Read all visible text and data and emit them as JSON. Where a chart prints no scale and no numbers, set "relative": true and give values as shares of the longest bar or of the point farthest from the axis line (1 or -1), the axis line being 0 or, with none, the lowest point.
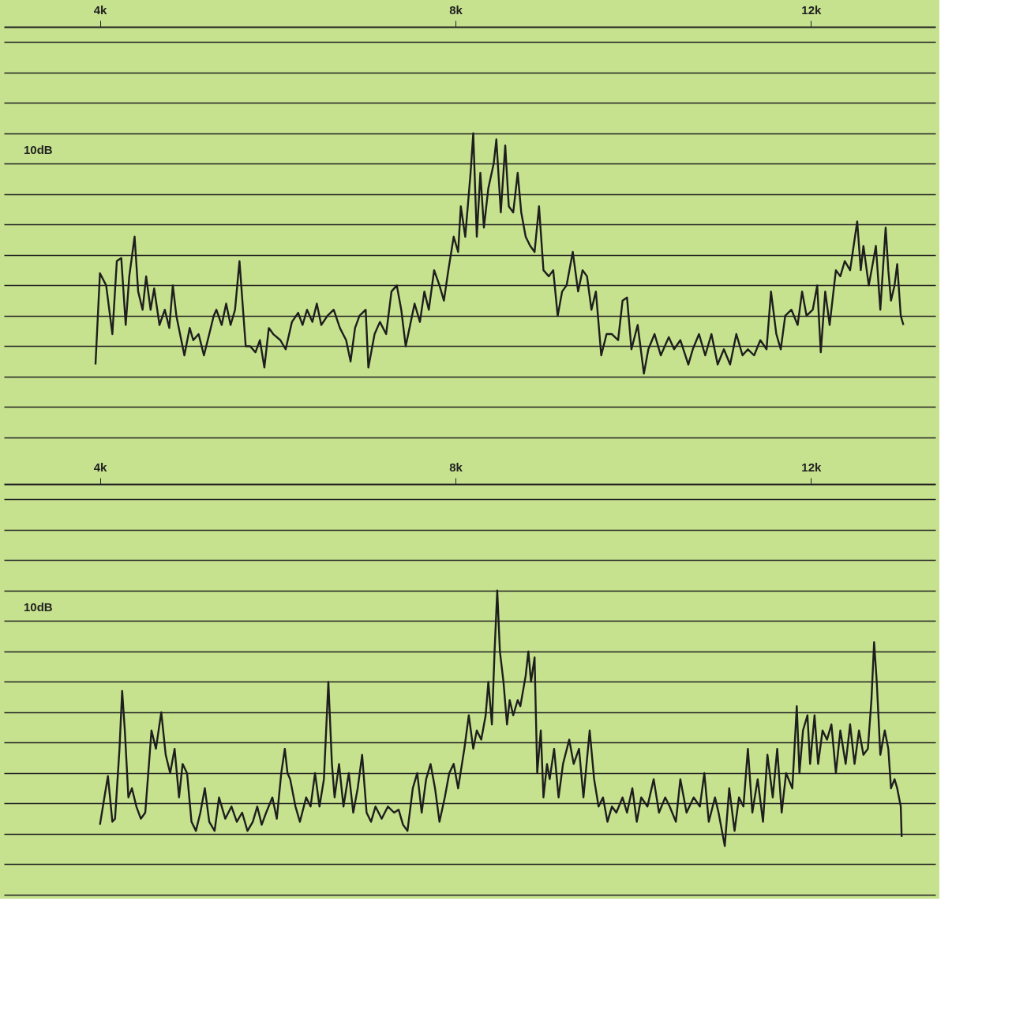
{
  "chart_data": [
    {
      "type": "line",
      "relative": true,
      "grid": "y",
      "tick_labels": "x",
      "marker": "none",
      "line_style": "solid",
      "annotations": [
        "10dB"
      ],
      "xlim": [
        2.92,
        13.4
      ],
      "xticks": [
        {
          "value": 4,
          "label": "4k"
        },
        {
          "value": 8,
          "label": "8k"
        },
        {
          "value": 12,
          "label": "12k"
        }
      ],
      "series": [
        {
          "color": "#1e1e1e",
          "x": [
            3.95,
            4.0,
            4.07,
            4.14,
            4.19,
            4.24,
            4.29,
            4.33,
            4.39,
            4.43,
            4.48,
            4.52,
            4.57,
            4.61,
            4.67,
            4.73,
            4.78,
            4.82,
            4.86,
            4.95,
            5.01,
            5.05,
            5.11,
            5.17,
            5.23,
            5.28,
            5.31,
            5.37,
            5.42,
            5.47,
            5.52,
            5.57,
            5.61,
            5.64,
            5.69,
            5.75,
            5.8,
            5.85,
            5.9,
            5.95,
            6.03,
            6.09,
            6.16,
            6.23,
            6.28,
            6.33,
            6.39,
            6.44,
            6.49,
            6.56,
            6.63,
            6.7,
            6.77,
            6.82,
            6.87,
            6.92,
            6.99,
            7.02,
            7.09,
            7.15,
            7.22,
            7.28,
            7.34,
            7.39,
            7.44,
            7.49,
            7.54,
            7.6,
            7.65,
            7.7,
            7.76,
            7.82,
            7.87,
            7.92,
            7.98,
            8.03,
            8.06,
            8.11,
            8.17,
            8.2,
            8.24,
            8.28,
            8.32,
            8.37,
            8.43,
            8.46,
            8.51,
            8.56,
            8.6,
            8.65,
            8.7,
            8.74,
            8.79,
            8.84,
            8.89,
            8.94,
            8.99,
            9.05,
            9.1,
            9.15,
            9.2,
            9.25,
            9.32,
            9.38,
            9.43,
            9.48,
            9.53,
            9.58,
            9.64,
            9.7,
            9.76,
            9.83,
            9.88,
            9.93,
            9.98,
            10.05,
            10.12,
            10.17,
            10.24,
            10.31,
            10.4,
            10.46,
            10.53,
            10.62,
            10.67,
            10.74,
            10.81,
            10.88,
            10.95,
            11.02,
            11.09,
            11.16,
            11.23,
            11.29,
            11.36,
            11.43,
            11.5,
            11.55,
            11.61,
            11.66,
            11.71,
            11.78,
            11.85,
            11.9,
            11.95,
            12.02,
            12.07,
            12.11,
            12.16,
            12.21,
            12.28,
            12.33,
            12.38,
            12.44,
            12.47,
            12.52,
            12.56,
            12.59,
            12.65,
            12.7,
            12.73,
            12.78,
            12.84,
            12.87,
            12.9,
            12.94,
            12.97,
            13.01,
            13.04
          ],
          "values": [
            0.24,
            0.54,
            0.5,
            0.34,
            0.58,
            0.59,
            0.37,
            0.53,
            0.66,
            0.48,
            0.42,
            0.53,
            0.42,
            0.49,
            0.37,
            0.42,
            0.36,
            0.5,
            0.4,
            0.27,
            0.36,
            0.32,
            0.34,
            0.27,
            0.34,
            0.4,
            0.42,
            0.37,
            0.44,
            0.37,
            0.42,
            0.58,
            0.42,
            0.3,
            0.3,
            0.28,
            0.32,
            0.23,
            0.36,
            0.34,
            0.32,
            0.29,
            0.38,
            0.41,
            0.37,
            0.42,
            0.38,
            0.44,
            0.37,
            0.4,
            0.42,
            0.36,
            0.32,
            0.25,
            0.36,
            0.4,
            0.42,
            0.23,
            0.34,
            0.38,
            0.34,
            0.48,
            0.5,
            0.42,
            0.3,
            0.37,
            0.44,
            0.38,
            0.48,
            0.42,
            0.55,
            0.5,
            0.45,
            0.55,
            0.66,
            0.61,
            0.76,
            0.66,
            0.87,
            1.0,
            0.66,
            0.87,
            0.69,
            0.82,
            0.9,
            0.98,
            0.74,
            0.96,
            0.76,
            0.74,
            0.87,
            0.74,
            0.66,
            0.63,
            0.61,
            0.76,
            0.55,
            0.53,
            0.55,
            0.4,
            0.48,
            0.5,
            0.61,
            0.48,
            0.55,
            0.53,
            0.42,
            0.48,
            0.27,
            0.34,
            0.34,
            0.32,
            0.45,
            0.46,
            0.29,
            0.37,
            0.21,
            0.29,
            0.34,
            0.27,
            0.33,
            0.29,
            0.32,
            0.24,
            0.29,
            0.34,
            0.27,
            0.34,
            0.24,
            0.29,
            0.24,
            0.34,
            0.27,
            0.29,
            0.27,
            0.32,
            0.29,
            0.48,
            0.34,
            0.29,
            0.4,
            0.42,
            0.37,
            0.48,
            0.4,
            0.42,
            0.5,
            0.28,
            0.48,
            0.37,
            0.55,
            0.53,
            0.58,
            0.55,
            0.61,
            0.71,
            0.55,
            0.63,
            0.5,
            0.58,
            0.63,
            0.42,
            0.69,
            0.55,
            0.45,
            0.5,
            0.57,
            0.4,
            0.37
          ]
        }
      ]
    },
    {
      "type": "line",
      "relative": true,
      "grid": "y",
      "tick_labels": "x",
      "marker": "none",
      "line_style": "solid",
      "annotations": [
        "10dB"
      ],
      "xlim": [
        2.92,
        13.4
      ],
      "xticks": [
        {
          "value": 4,
          "label": "4k"
        },
        {
          "value": 8,
          "label": "8k"
        },
        {
          "value": 12,
          "label": "12k"
        }
      ],
      "series": [
        {
          "color": "#1e1e1e",
          "x": [
            4.0,
            4.05,
            4.09,
            4.14,
            4.17,
            4.22,
            4.25,
            4.28,
            4.32,
            4.36,
            4.41,
            4.46,
            4.51,
            4.58,
            4.63,
            4.69,
            4.74,
            4.79,
            4.84,
            4.89,
            4.93,
            4.98,
            5.03,
            5.08,
            5.13,
            5.18,
            5.23,
            5.29,
            5.34,
            5.41,
            5.48,
            5.54,
            5.6,
            5.66,
            5.72,
            5.77,
            5.82,
            5.87,
            5.94,
            5.99,
            6.04,
            6.08,
            6.11,
            6.14,
            6.2,
            6.25,
            6.32,
            6.37,
            6.42,
            6.47,
            6.52,
            6.57,
            6.61,
            6.64,
            6.69,
            6.74,
            6.8,
            6.85,
            6.9,
            6.95,
            7.0,
            7.05,
            7.1,
            7.17,
            7.24,
            7.31,
            7.36,
            7.41,
            7.46,
            7.52,
            7.57,
            7.62,
            7.67,
            7.72,
            7.77,
            7.82,
            7.88,
            7.93,
            7.98,
            8.03,
            8.1,
            8.15,
            8.2,
            8.24,
            8.29,
            8.34,
            8.37,
            8.41,
            8.44,
            8.47,
            8.5,
            8.54,
            8.58,
            8.61,
            8.65,
            8.7,
            8.73,
            8.79,
            8.82,
            8.85,
            8.89,
            8.92,
            8.96,
            8.99,
            9.03,
            9.06,
            9.11,
            9.16,
            9.21,
            9.28,
            9.33,
            9.39,
            9.44,
            9.51,
            9.56,
            9.61,
            9.66,
            9.71,
            9.76,
            9.81,
            9.88,
            9.93,
            9.99,
            10.04,
            10.09,
            10.16,
            10.23,
            10.29,
            10.36,
            10.41,
            10.48,
            10.53,
            10.6,
            10.68,
            10.75,
            10.8,
            10.85,
            10.92,
            10.96,
            11.03,
            11.08,
            11.14,
            11.19,
            11.24,
            11.29,
            11.34,
            11.4,
            11.46,
            11.51,
            11.57,
            11.62,
            11.67,
            11.72,
            11.79,
            11.84,
            11.87,
            11.91,
            11.96,
            11.99,
            12.04,
            12.08,
            12.13,
            12.18,
            12.23,
            12.28,
            12.33,
            12.39,
            12.44,
            12.49,
            12.54,
            12.59,
            12.64,
            12.68,
            12.71,
            12.74,
            12.78,
            12.83,
            12.87,
            12.9,
            12.94,
            12.97,
            13.01,
            13.02
          ],
          "values": [
            0.23,
            0.32,
            0.39,
            0.24,
            0.25,
            0.48,
            0.67,
            0.54,
            0.32,
            0.35,
            0.29,
            0.25,
            0.27,
            0.54,
            0.48,
            0.6,
            0.46,
            0.4,
            0.48,
            0.32,
            0.43,
            0.4,
            0.24,
            0.21,
            0.27,
            0.35,
            0.24,
            0.21,
            0.32,
            0.25,
            0.29,
            0.24,
            0.27,
            0.21,
            0.24,
            0.29,
            0.23,
            0.27,
            0.32,
            0.25,
            0.4,
            0.48,
            0.4,
            0.38,
            0.29,
            0.24,
            0.32,
            0.29,
            0.4,
            0.29,
            0.38,
            0.7,
            0.43,
            0.32,
            0.43,
            0.29,
            0.4,
            0.27,
            0.35,
            0.46,
            0.27,
            0.24,
            0.29,
            0.25,
            0.29,
            0.27,
            0.28,
            0.23,
            0.21,
            0.35,
            0.4,
            0.27,
            0.38,
            0.43,
            0.35,
            0.24,
            0.32,
            0.4,
            0.43,
            0.35,
            0.48,
            0.59,
            0.48,
            0.54,
            0.51,
            0.59,
            0.7,
            0.56,
            0.8,
            1.0,
            0.8,
            0.7,
            0.56,
            0.64,
            0.59,
            0.64,
            0.62,
            0.72,
            0.8,
            0.7,
            0.78,
            0.4,
            0.54,
            0.32,
            0.43,
            0.38,
            0.48,
            0.32,
            0.43,
            0.51,
            0.43,
            0.48,
            0.32,
            0.54,
            0.38,
            0.29,
            0.32,
            0.24,
            0.29,
            0.27,
            0.32,
            0.27,
            0.35,
            0.24,
            0.32,
            0.29,
            0.38,
            0.27,
            0.32,
            0.29,
            0.24,
            0.38,
            0.27,
            0.32,
            0.29,
            0.4,
            0.24,
            0.32,
            0.27,
            0.16,
            0.35,
            0.21,
            0.32,
            0.29,
            0.48,
            0.27,
            0.38,
            0.24,
            0.46,
            0.32,
            0.48,
            0.27,
            0.4,
            0.35,
            0.62,
            0.4,
            0.54,
            0.59,
            0.43,
            0.59,
            0.43,
            0.54,
            0.51,
            0.56,
            0.4,
            0.54,
            0.43,
            0.56,
            0.43,
            0.54,
            0.46,
            0.48,
            0.64,
            0.83,
            0.7,
            0.46,
            0.54,
            0.48,
            0.35,
            0.38,
            0.35,
            0.29,
            0.19
          ]
        }
      ]
    }
  ]
}
